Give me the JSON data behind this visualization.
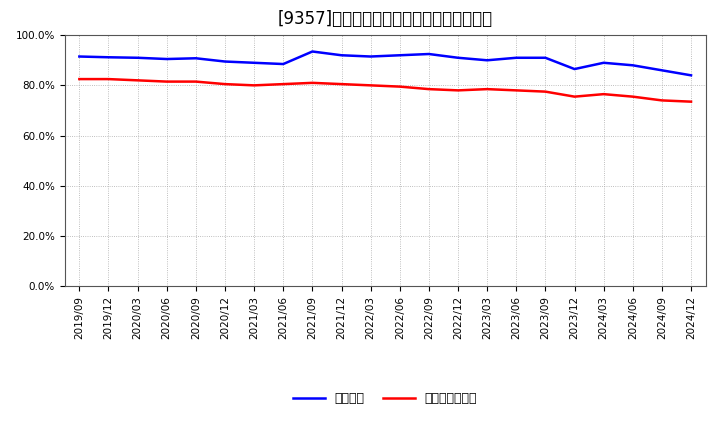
{
  "title": "[9357]　固定比率、固定長期適合率の推移",
  "series1_label": "固定比率",
  "series2_label": "固定長期適合率",
  "series1_color": "#0000FF",
  "series2_color": "#FF0000",
  "x_labels": [
    "2019/09",
    "2019/12",
    "2020/03",
    "2020/06",
    "2020/09",
    "2020/12",
    "2021/03",
    "2021/06",
    "2021/09",
    "2021/12",
    "2022/03",
    "2022/06",
    "2022/09",
    "2022/12",
    "2023/03",
    "2023/06",
    "2023/09",
    "2023/12",
    "2024/03",
    "2024/06",
    "2024/09",
    "2024/12"
  ],
  "series1_values": [
    91.5,
    91.2,
    91.0,
    90.5,
    90.8,
    89.5,
    89.0,
    88.5,
    93.5,
    92.0,
    91.5,
    92.0,
    92.5,
    91.0,
    90.0,
    91.0,
    91.0,
    86.5,
    89.0,
    88.0,
    86.0,
    84.0
  ],
  "series2_values": [
    82.5,
    82.5,
    82.0,
    81.5,
    81.5,
    80.5,
    80.0,
    80.5,
    81.0,
    80.5,
    80.0,
    79.5,
    78.5,
    78.0,
    78.5,
    78.0,
    77.5,
    75.5,
    76.5,
    75.5,
    74.0,
    73.5
  ],
  "ylim": [
    0,
    100
  ],
  "yticks": [
    0,
    20,
    40,
    60,
    80,
    100
  ],
  "ytick_labels": [
    "0.0%",
    "20.0%",
    "40.0%",
    "60.0%",
    "80.0%",
    "100.0%"
  ],
  "background_color": "#ffffff",
  "grid_color": "#aaaaaa",
  "title_fontsize": 12,
  "legend_fontsize": 9,
  "tick_fontsize": 7.5
}
